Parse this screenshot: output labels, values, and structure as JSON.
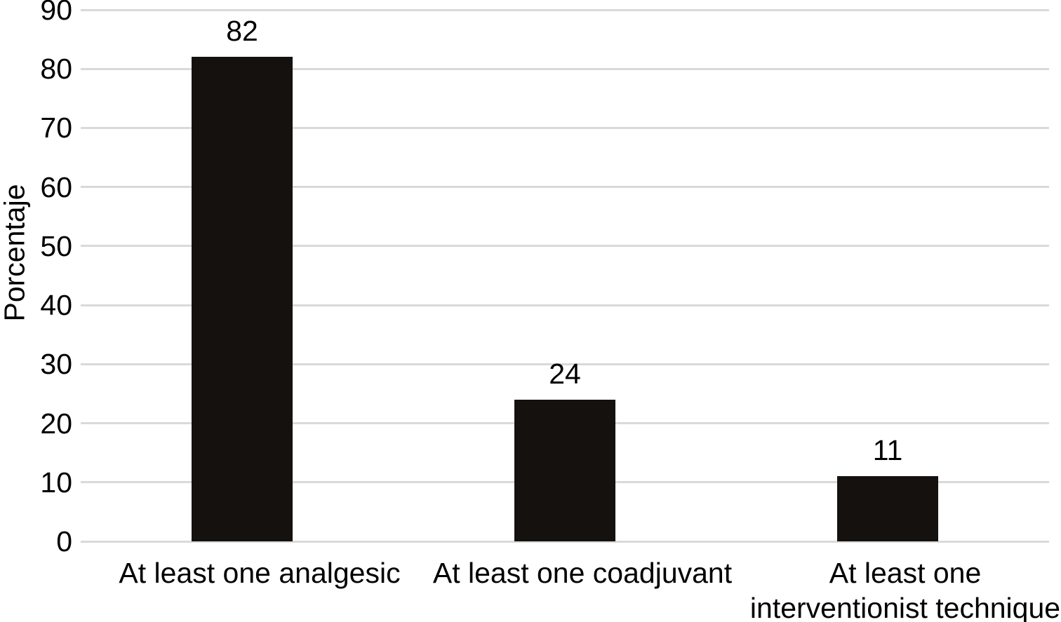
{
  "chart_data": {
    "type": "bar",
    "title": "",
    "xlabel": "",
    "ylabel": "Porcentaje",
    "categories": [
      "At least one analgesic",
      "At least one coadjuvant",
      "At least one interventionist technique"
    ],
    "category_lines": [
      [
        "At least one analgesic"
      ],
      [
        "At least one coadjuvant"
      ],
      [
        "At least one",
        "interventionist technique"
      ]
    ],
    "values": [
      82,
      24,
      11
    ],
    "value_labels": [
      "82",
      "24",
      "11"
    ],
    "yticks": [
      0,
      10,
      20,
      30,
      40,
      50,
      60,
      70,
      80,
      90
    ],
    "ylim": [
      0,
      90
    ],
    "grid": "horizontal-gridlines",
    "legend": "none",
    "colors": {
      "bar": "#14110f",
      "gridline": "#d9d9d9",
      "text": "#000000",
      "background": "#ffffff"
    }
  }
}
